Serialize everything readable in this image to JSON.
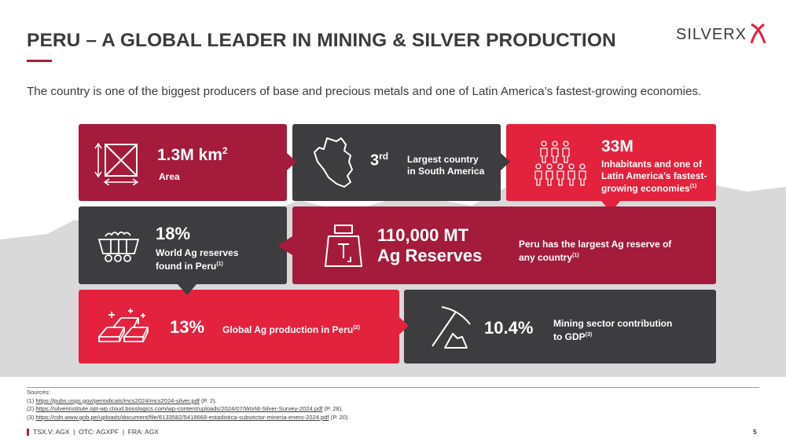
{
  "title": "PERU – A GLOBAL LEADER IN MINING & SILVER PRODUCTION",
  "subtitle": "The country is one of the biggest producers of base and precious metals and one of Latin America’s fastest-growing economies.",
  "logo_text": "SILVERX",
  "colors": {
    "maroon": "#a51b3c",
    "dark": "#3d3c3e",
    "red": "#e3223e",
    "accent": "#a8213b"
  },
  "tiles": {
    "area": {
      "value": "1.3M km",
      "sup": "2",
      "label": "Area",
      "icon": "area-square-icon"
    },
    "rank": {
      "value": "3",
      "sup": "rd",
      "label_line1": "Largest country",
      "label_line2": "in South America",
      "icon": "peru-map-icon"
    },
    "population": {
      "value": "33M",
      "label_line1": "Inhabitants and one of",
      "label_line2": "Latin America’s fastest-",
      "label_line3": "growing economies",
      "sup": "(1)",
      "icon": "people-icon"
    },
    "reserves_share": {
      "value": "18%",
      "label_line1": "World Ag reserves",
      "label_line2": "found in Peru",
      "sup": "(1)",
      "icon": "mine-cart-icon"
    },
    "reserves": {
      "value_line1": "110,000 MT",
      "value_line2": "Ag Reserves",
      "label_line1": "Peru has the largest Ag reserve of",
      "label_line2": "any country",
      "sup": "(1)",
      "icon": "weight-icon"
    },
    "production": {
      "value": "13%",
      "label": "Global Ag production in Peru",
      "sup": "(2)",
      "icon": "silver-bars-icon"
    },
    "gdp": {
      "value": "10.4%",
      "label_line1": "Mining sector contribution",
      "label_line2": "to GDP",
      "sup": "(3)",
      "icon": "pickaxe-icon"
    }
  },
  "sources": {
    "heading": "Sources:",
    "items": [
      {
        "num": "(1) ",
        "url": "https://pubs.usgs.gov/periodicals/mcs2024/mcs2024-silver.pdf",
        "note": " (P. 2)."
      },
      {
        "num": "(2) ",
        "url": "https://silverinstitute.opt-wp.cloud.bosslogics.com/wp-content/uploads/2024/07/World-Silver-Survey-2024.pdf",
        "note": " (P. 28)."
      },
      {
        "num": "(3) ",
        "url": "https://cdn.www.gob.pe/uploads/document/file/6133582/5418668-estadistica-subsector-mineria-enero-2024.pdf",
        "note": " (P. 20)"
      }
    ]
  },
  "footer": {
    "tickers": "TSX.V: AGX  |  OTC: AGXPF  |  FRA: AGX",
    "page": "5"
  }
}
